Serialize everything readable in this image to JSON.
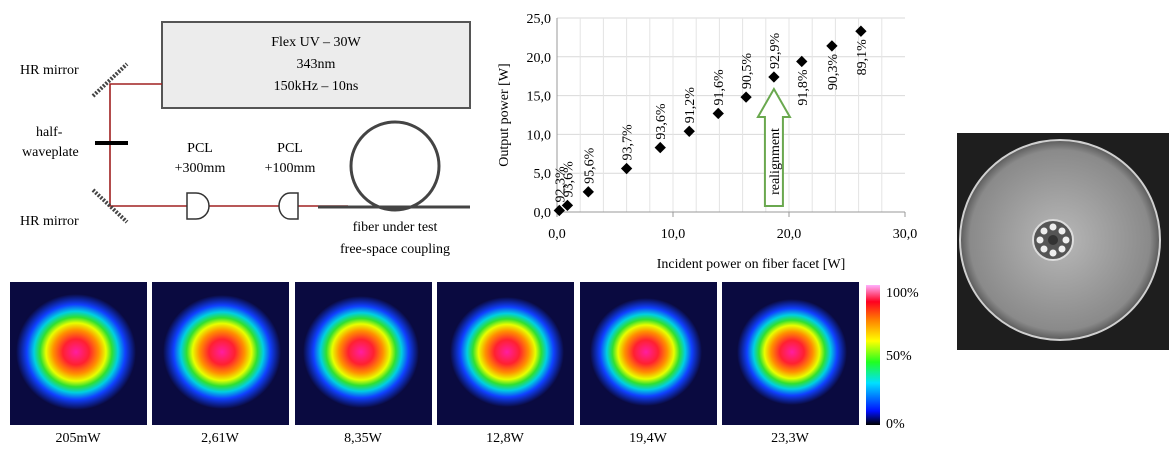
{
  "diagram": {
    "laser": [
      "Flex UV – 30W",
      "343nm",
      "150kHz – 10ns"
    ],
    "mirror_top": "HR mirror",
    "waveplate": [
      "half-",
      "waveplate"
    ],
    "mirror_bottom": "HR mirror",
    "lens1": [
      "PCL",
      "+300mm"
    ],
    "lens2": [
      "PCL",
      "+100mm"
    ],
    "fiber": [
      "fiber under test",
      "free-space coupling"
    ]
  },
  "chart_data": {
    "type": "scatter",
    "x_label": "Incident power on fiber facet [W]",
    "y_label": "Output power [W]",
    "x": [
      0.2,
      0.9,
      2.7,
      6.0,
      8.9,
      11.4,
      13.9,
      16.3,
      18.7,
      21.1,
      23.7,
      26.2
    ],
    "values": [
      0.2,
      0.85,
      2.6,
      5.6,
      8.3,
      10.4,
      12.7,
      14.8,
      17.4,
      19.4,
      21.4,
      23.3
    ],
    "point_labels": [
      "92,3%",
      "93,6%",
      "95,6%",
      "93,7%",
      "93,6%",
      "91,2%",
      "91,6%",
      "90,5%",
      "92,9%",
      "91,8%",
      "90,3%",
      "89,1%"
    ],
    "color": "#000000",
    "xlim": [
      0,
      30
    ],
    "ylim": [
      0,
      25
    ],
    "xticks": [
      {
        "value": 0,
        "label": "0,0"
      },
      {
        "value": 10,
        "label": "10,0"
      },
      {
        "value": 20,
        "label": "20,0"
      },
      {
        "value": 30,
        "label": "30,0"
      }
    ],
    "yticks": [
      {
        "value": 0,
        "label": "0,0"
      },
      {
        "value": 5,
        "label": "5,0"
      },
      {
        "value": 10,
        "label": "10,0"
      },
      {
        "value": 15,
        "label": "15,0"
      },
      {
        "value": 20,
        "label": "20,0"
      },
      {
        "value": 25,
        "label": "25,0"
      }
    ],
    "grid": true,
    "annotation": "realignment"
  },
  "beam_profiles": {
    "captions": [
      "205mW",
      "2,61W",
      "8,35W",
      "12,8W",
      "19,4W",
      "23,3W"
    ],
    "colorbar_ticks": [
      "100%",
      "50%",
      "0%"
    ]
  }
}
